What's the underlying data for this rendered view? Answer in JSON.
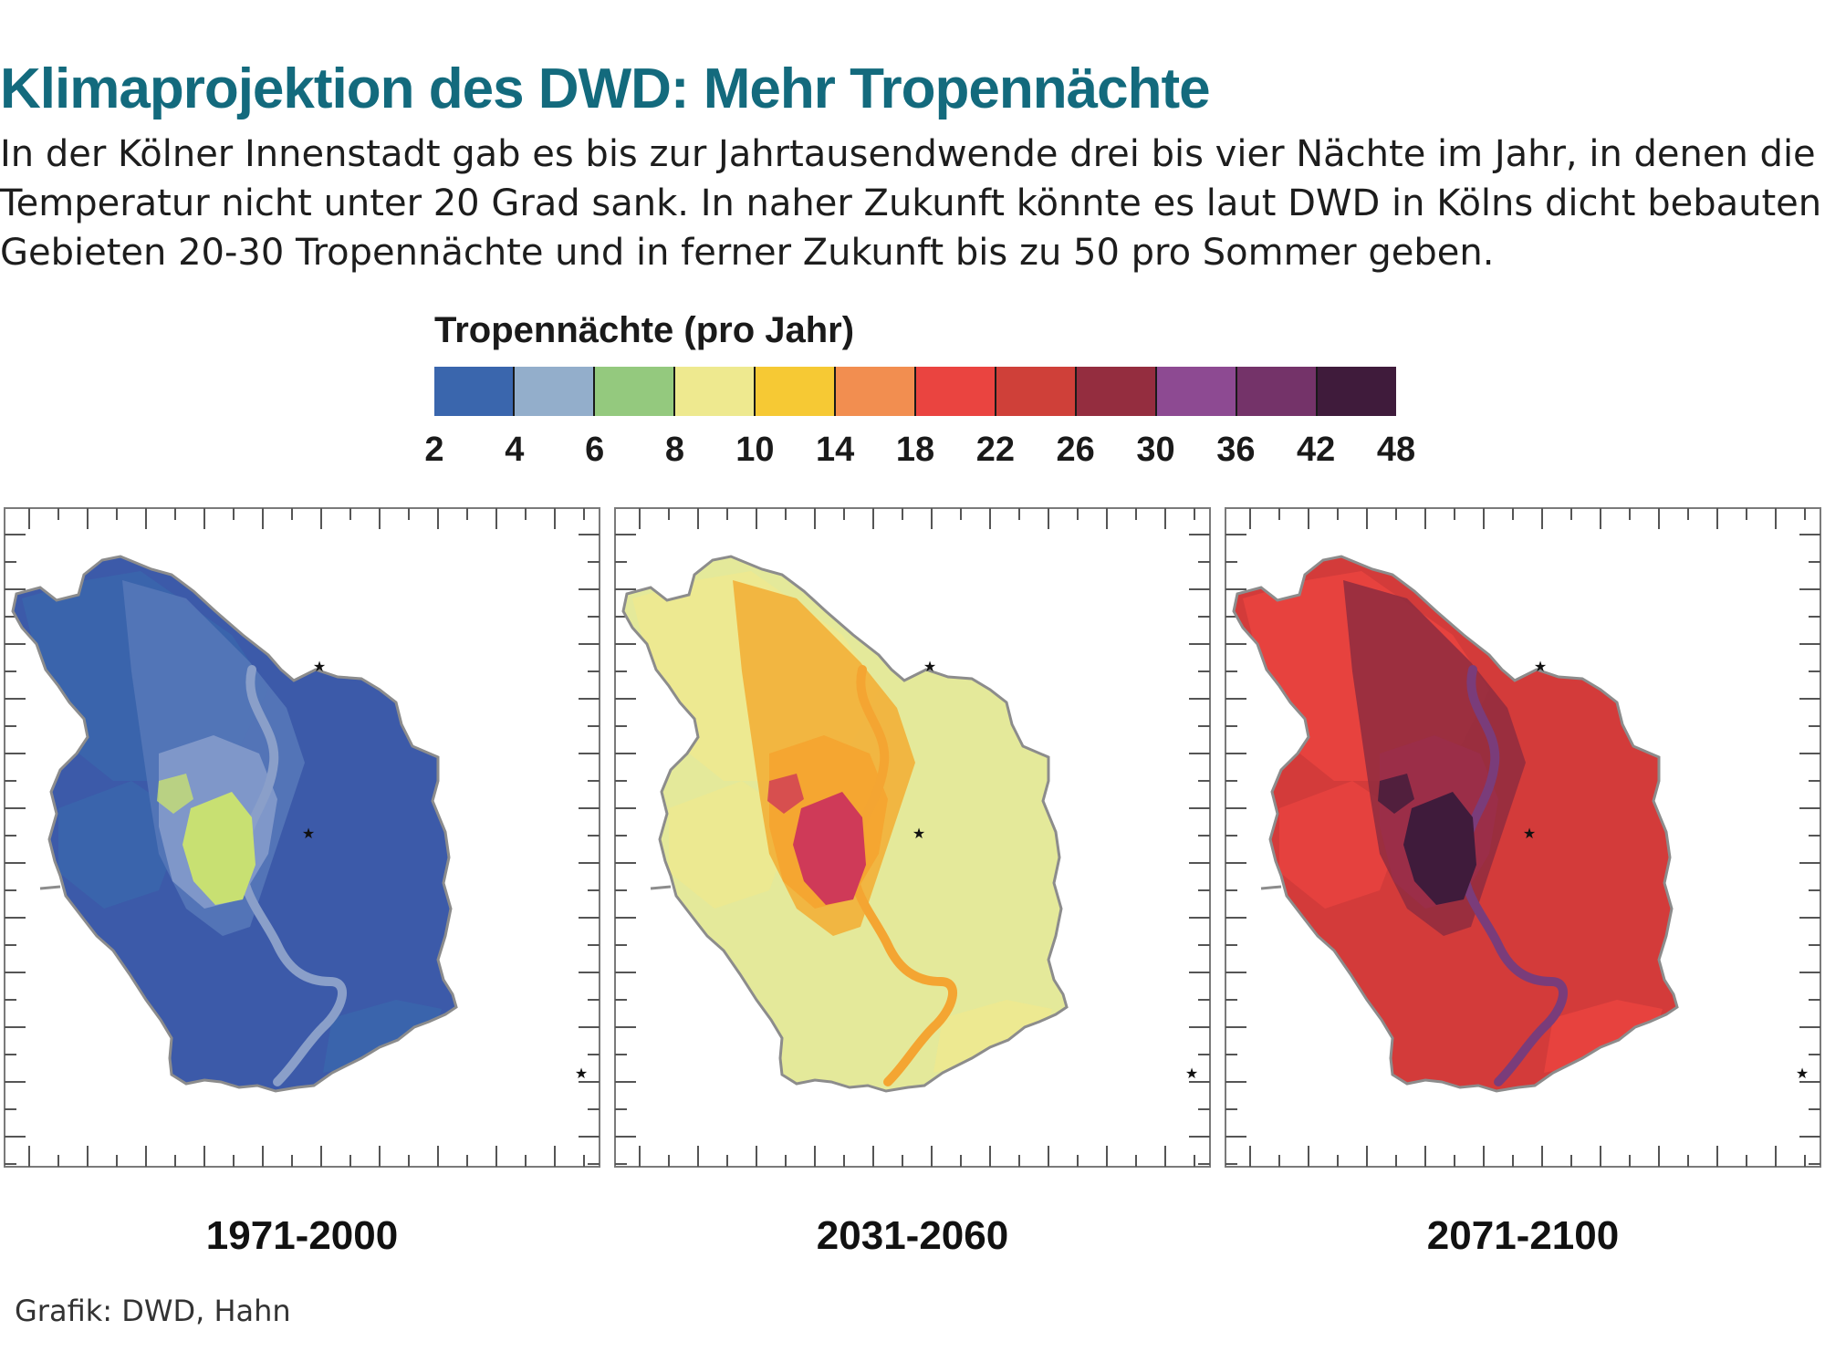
{
  "title": "Klimaprojektion des DWD: Mehr Tropennächte",
  "subtitle_lines": [
    "In der Kölner Innenstadt gab es bis zur Jahrtausendwende drei bis vier Nächte im Jahr, in denen die",
    "Temperatur nicht unter 20 Grad sank. In naher Zukunft könnte es laut DWD in Kölns dicht bebauten",
    "Gebieten 20-30 Tropennächte und in ferner Zukunft bis zu 50 pro Sommer geben."
  ],
  "legend": {
    "title": "Tropennächte (pro Jahr)",
    "ticks": [
      "2",
      "4",
      "6",
      "8",
      "10",
      "14",
      "18",
      "22",
      "26",
      "30",
      "36",
      "42",
      "48"
    ],
    "colors": [
      "#3a66ad",
      "#93aecb",
      "#94c97e",
      "#eee98f",
      "#f6c934",
      "#f28e50",
      "#ea4440",
      "#cf4039",
      "#942d3f",
      "#8d4a92",
      "#743369",
      "#3f1b3b"
    ]
  },
  "panels": [
    {
      "label": "1971-2000",
      "base": "#3c5aa9",
      "zone2": "#3a66ad",
      "zone3": "#5577b8",
      "urban": "#7f97c9",
      "core": "#c8e072",
      "river": "#8a9fc9"
    },
    {
      "label": "2031-2060",
      "base": "#e4e99a",
      "zone2": "#eee98f",
      "zone3": "#f2b039",
      "urban": "#f5a631",
      "core": "#cf3a58",
      "river": "#f4a532"
    },
    {
      "label": "2071-2100",
      "base": "#d33b3a",
      "zone2": "#ea4440",
      "zone3": "#942d3f",
      "urban": "#9b2e48",
      "core": "#3f1b3b",
      "river": "#7a3c7a"
    }
  ],
  "source": "Grafik: DWD, Hahn"
}
